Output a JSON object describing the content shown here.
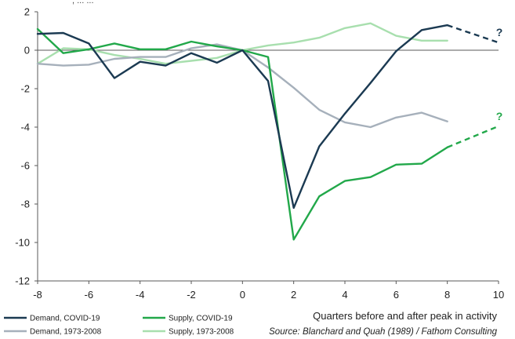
{
  "top_fragment": ", ... ...",
  "chart_data": {
    "type": "line",
    "xlabel": "Quarters before and after peak in activity",
    "ylabel": "",
    "xlim": [
      -8,
      10
    ],
    "ylim": [
      -12,
      2
    ],
    "xticks": [
      -8,
      -6,
      -4,
      -2,
      0,
      2,
      4,
      6,
      8,
      10
    ],
    "yticks": [
      2,
      0,
      -2,
      -4,
      -6,
      -8,
      -10,
      -12
    ],
    "grid": false,
    "legend_position": "bottom-left",
    "source": "Source: Blanchard and Quah (1989) / Fathom Consulting",
    "series": [
      {
        "name": "Demand, COVID-19",
        "color": "#1b3a52",
        "x": [
          -8,
          -7,
          -6,
          -5,
          -4,
          -3,
          -2,
          -1,
          0,
          1,
          2,
          3,
          4,
          5,
          6,
          7,
          8
        ],
        "values": [
          0.85,
          0.9,
          0.35,
          -1.45,
          -0.6,
          -0.8,
          -0.15,
          -0.65,
          0,
          -1.6,
          -8.2,
          -5.0,
          -3.3,
          -1.7,
          -0.05,
          1.05,
          1.3
        ],
        "projection": {
          "x": [
            8,
            10
          ],
          "values": [
            1.3,
            0.4
          ],
          "label": "?"
        }
      },
      {
        "name": "Supply, COVID-19",
        "color": "#22a84a",
        "x": [
          -8,
          -7,
          -6,
          -5,
          -4,
          -3,
          -2,
          -1,
          0,
          1,
          2,
          3,
          4,
          5,
          6,
          7,
          8
        ],
        "values": [
          1.1,
          -0.15,
          0.05,
          0.35,
          0.05,
          0.05,
          0.45,
          0.2,
          0,
          -0.35,
          -9.85,
          -7.6,
          -6.8,
          -6.6,
          -5.95,
          -5.9,
          -5.05
        ],
        "projection": {
          "x": [
            8,
            10
          ],
          "values": [
            -5.05,
            -3.95
          ],
          "label": "?"
        }
      },
      {
        "name": "Demand, 1973-2008",
        "color": "#a6b0bb",
        "x": [
          -8,
          -7,
          -6,
          -5,
          -4,
          -3,
          -2,
          -1,
          0,
          1,
          2,
          3,
          4,
          5,
          6,
          7,
          8
        ],
        "values": [
          -0.7,
          -0.8,
          -0.75,
          -0.45,
          -0.35,
          -0.35,
          0.1,
          0.3,
          0,
          -0.9,
          -1.95,
          -3.1,
          -3.75,
          -4.0,
          -3.5,
          -3.25,
          -3.7
        ]
      },
      {
        "name": "Supply, 1973-2008",
        "color": "#a8dfae",
        "x": [
          -8,
          -7,
          -6,
          -5,
          -4,
          -3,
          -2,
          -1,
          0,
          1,
          2,
          3,
          4,
          5,
          6,
          7,
          8
        ],
        "values": [
          -0.7,
          0.1,
          0.05,
          -0.25,
          -0.45,
          -0.7,
          -0.55,
          -0.4,
          0,
          0.25,
          0.4,
          0.65,
          1.15,
          1.4,
          0.75,
          0.5,
          0.5
        ]
      }
    ]
  }
}
